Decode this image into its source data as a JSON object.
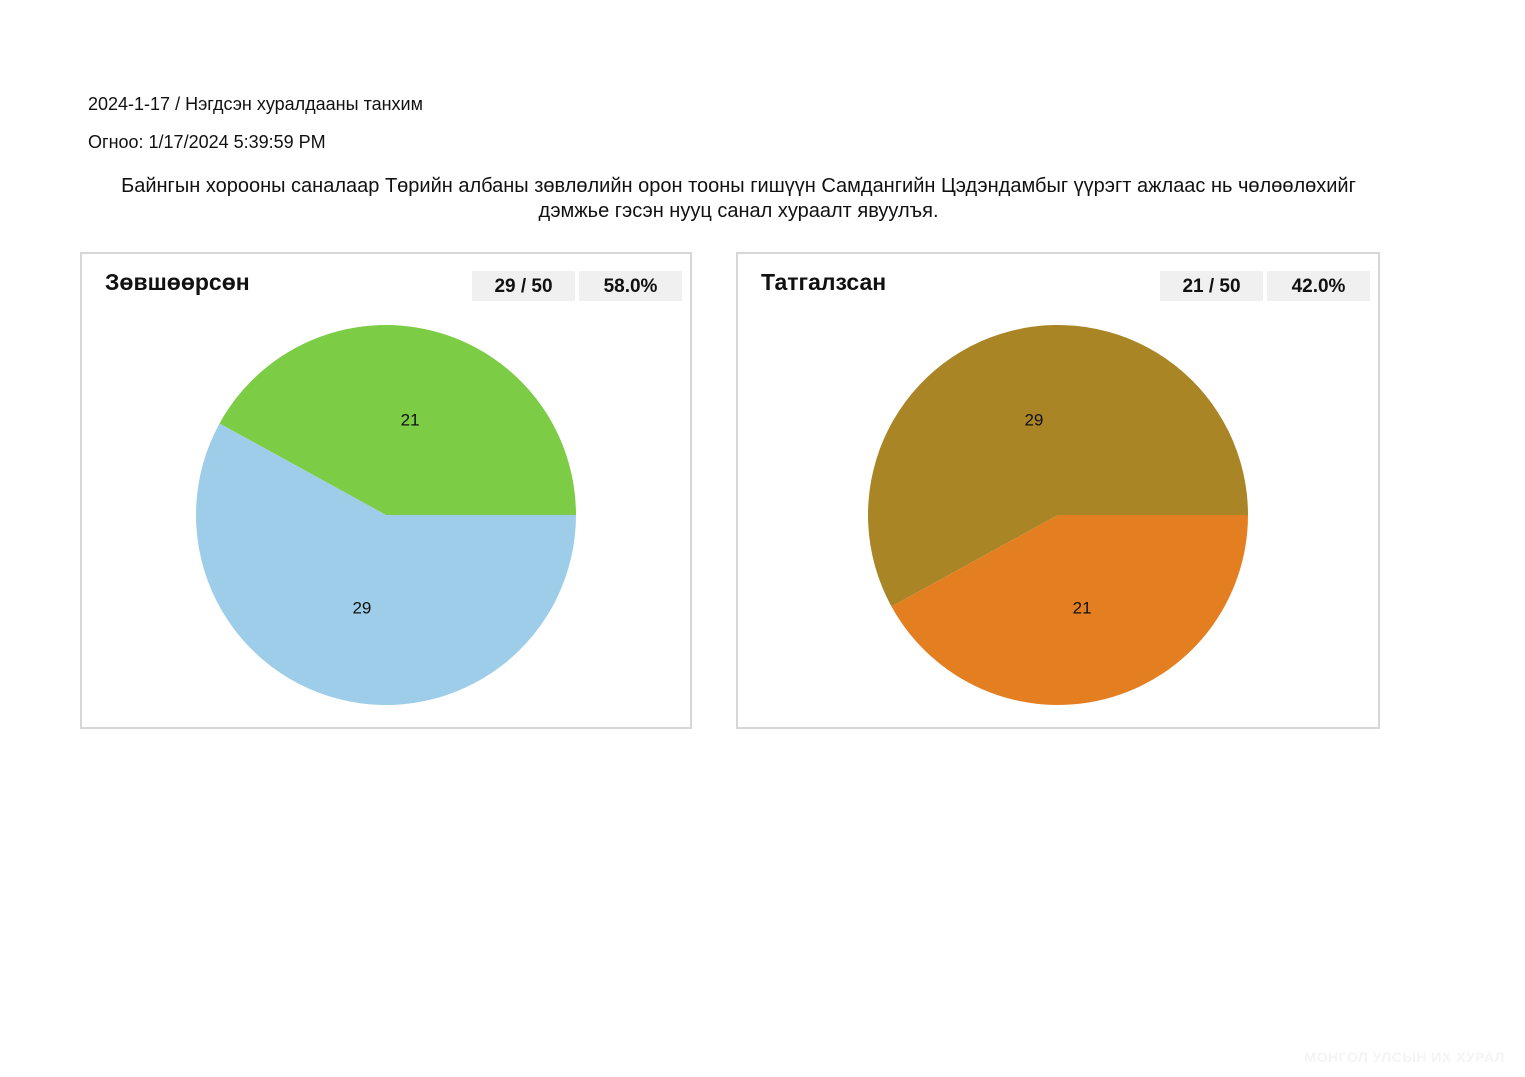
{
  "header": {
    "meeting": "2024-1-17 / Нэгдсэн хуралдааны танхим",
    "date": "Огноо: 1/17/2024 5:39:59 PM"
  },
  "question": "Байнгын хорооны саналаар Төрийн албаны зөвлөлийн орон тооны гишүүн Самдангийн Цэдэндамбыг үүрэгт ажлаас нь чөлөөлөхийг дэмжье гэсэн нууц санал хураалт явуулъя.",
  "panels": [
    {
      "title": "Зөвшөөрсөн",
      "count": "29 / 50",
      "percent": "58.0%"
    },
    {
      "title": "Татгалзсан",
      "count": "21 / 50",
      "percent": "42.0%"
    }
  ],
  "footer": "МОНГОЛ УЛСЫН ИХ ХУРАЛ",
  "chart_data": [
    {
      "type": "pie",
      "title": "Зөвшөөрсөн",
      "slices": [
        {
          "label": "21",
          "value": 21,
          "color": "#7ccc46"
        },
        {
          "label": "29",
          "value": 29,
          "color": "#9ecde9"
        }
      ]
    },
    {
      "type": "pie",
      "title": "Татгалзсан",
      "slices": [
        {
          "label": "29",
          "value": 29,
          "color": "#a98526"
        },
        {
          "label": "21",
          "value": 21,
          "color": "#e37f21"
        }
      ]
    }
  ]
}
